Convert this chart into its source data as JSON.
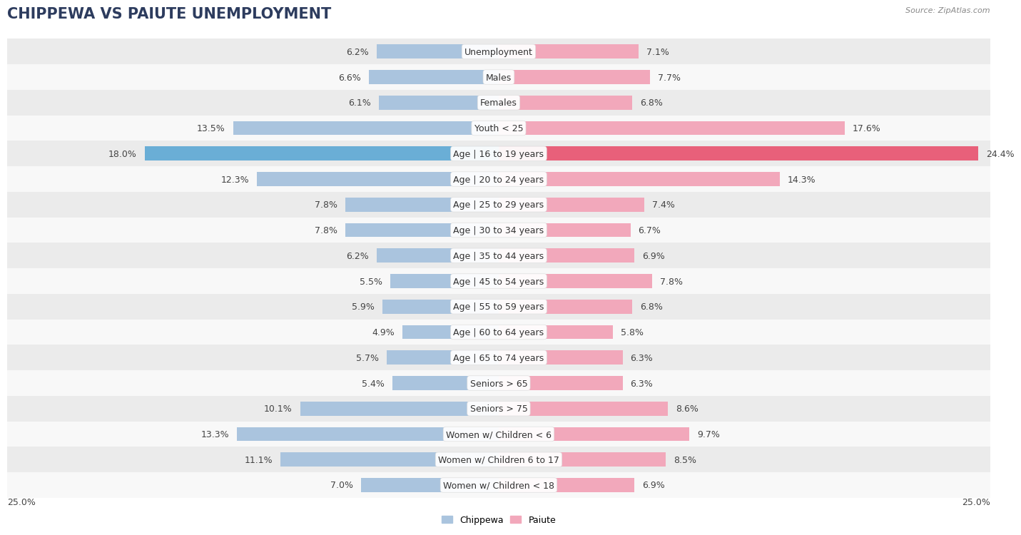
{
  "title": "CHIPPEWA VS PAIUTE UNEMPLOYMENT",
  "source": "Source: ZipAtlas.com",
  "categories": [
    "Unemployment",
    "Males",
    "Females",
    "Youth < 25",
    "Age | 16 to 19 years",
    "Age | 20 to 24 years",
    "Age | 25 to 29 years",
    "Age | 30 to 34 years",
    "Age | 35 to 44 years",
    "Age | 45 to 54 years",
    "Age | 55 to 59 years",
    "Age | 60 to 64 years",
    "Age | 65 to 74 years",
    "Seniors > 65",
    "Seniors > 75",
    "Women w/ Children < 6",
    "Women w/ Children 6 to 17",
    "Women w/ Children < 18"
  ],
  "chippewa": [
    6.2,
    6.6,
    6.1,
    13.5,
    18.0,
    12.3,
    7.8,
    7.8,
    6.2,
    5.5,
    5.9,
    4.9,
    5.7,
    5.4,
    10.1,
    13.3,
    11.1,
    7.0
  ],
  "paiute": [
    7.1,
    7.7,
    6.8,
    17.6,
    24.4,
    14.3,
    7.4,
    6.7,
    6.9,
    7.8,
    6.8,
    5.8,
    6.3,
    6.3,
    8.6,
    9.7,
    8.5,
    6.9
  ],
  "chippewa_color": "#aac4de",
  "paiute_color": "#f2a8bb",
  "chippewa_color_highlight": "#6aaed6",
  "paiute_color_highlight": "#e8607a",
  "background_row_odd": "#ebebeb",
  "background_row_even": "#f8f8f8",
  "xlim": 25.0,
  "bar_height": 0.55,
  "title_fontsize": 15,
  "label_fontsize": 9,
  "value_fontsize": 9,
  "legend_fontsize": 9
}
